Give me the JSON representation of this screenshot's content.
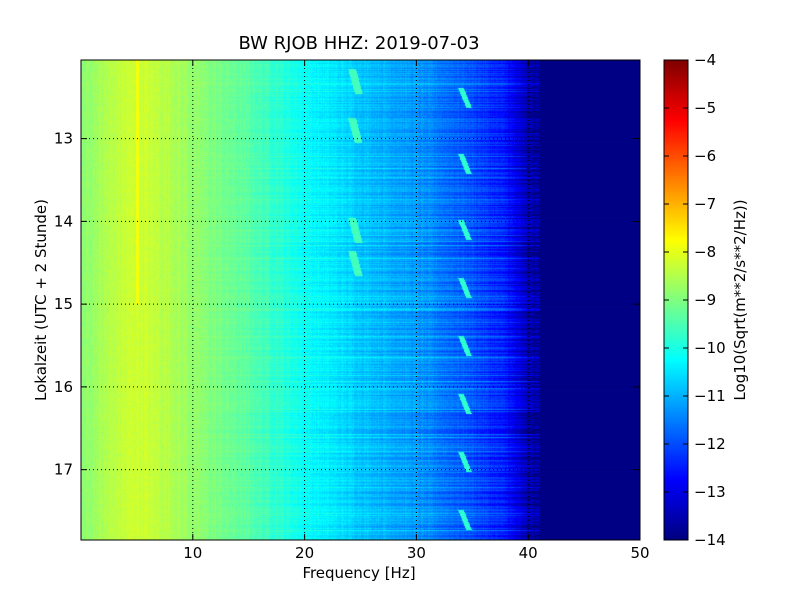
{
  "chart_data": {
    "type": "heatmap",
    "title": "BW RJOB HHZ: 2019-07-03",
    "xlabel": "Frequency [Hz]",
    "ylabel": "Lokalzeit (UTC + 2 Stunde)",
    "xlim": [
      0,
      50
    ],
    "ylim": [
      12.05,
      17.85
    ],
    "y_inverted": true,
    "x_ticks": [
      10,
      20,
      30,
      40,
      50
    ],
    "x_tick_labels": [
      "10",
      "20",
      "30",
      "40",
      "50"
    ],
    "y_ticks": [
      13,
      14,
      15,
      16,
      17
    ],
    "y_tick_labels": [
      "13",
      "14",
      "15",
      "16",
      "17"
    ],
    "grid": true,
    "colormap": "jet",
    "colorbar": {
      "label": "Log10(Sqrt(m**2/s**2/Hz))",
      "min": -14,
      "max": -4,
      "ticks": [
        -4,
        -5,
        -6,
        -7,
        -8,
        -9,
        -10,
        -11,
        -12,
        -13,
        -14
      ],
      "tick_labels": [
        "−4",
        "−5",
        "−6",
        "−7",
        "−8",
        "−9",
        "−10",
        "−11",
        "−12",
        "−13",
        "−14"
      ]
    },
    "spectrum_profile": {
      "frequency_hz": [
        0,
        3,
        5,
        8,
        10,
        15,
        20,
        25,
        30,
        35,
        38,
        40,
        42,
        50
      ],
      "log10_amplitude": [
        -8.9,
        -8.4,
        -8.2,
        -8.5,
        -8.8,
        -9.4,
        -10.2,
        -10.8,
        -11.3,
        -12.0,
        -12.6,
        -13.6,
        -14.0,
        -14.0
      ]
    },
    "features": {
      "line_5hz": {
        "frequency_hz": 5,
        "start_hour": 12.05,
        "end_hour": 15.0,
        "log10_amplitude": -7.8
      },
      "drift_34hz": {
        "base_frequency_hz": 34.3,
        "hours": [
          12.5,
          13.3,
          14.1,
          14.8,
          15.5,
          16.2,
          16.9,
          17.6
        ]
      },
      "drift_24hz": {
        "base_frequency_hz": 24.5,
        "hours": [
          12.3,
          12.9,
          14.1,
          14.5
        ]
      }
    }
  }
}
